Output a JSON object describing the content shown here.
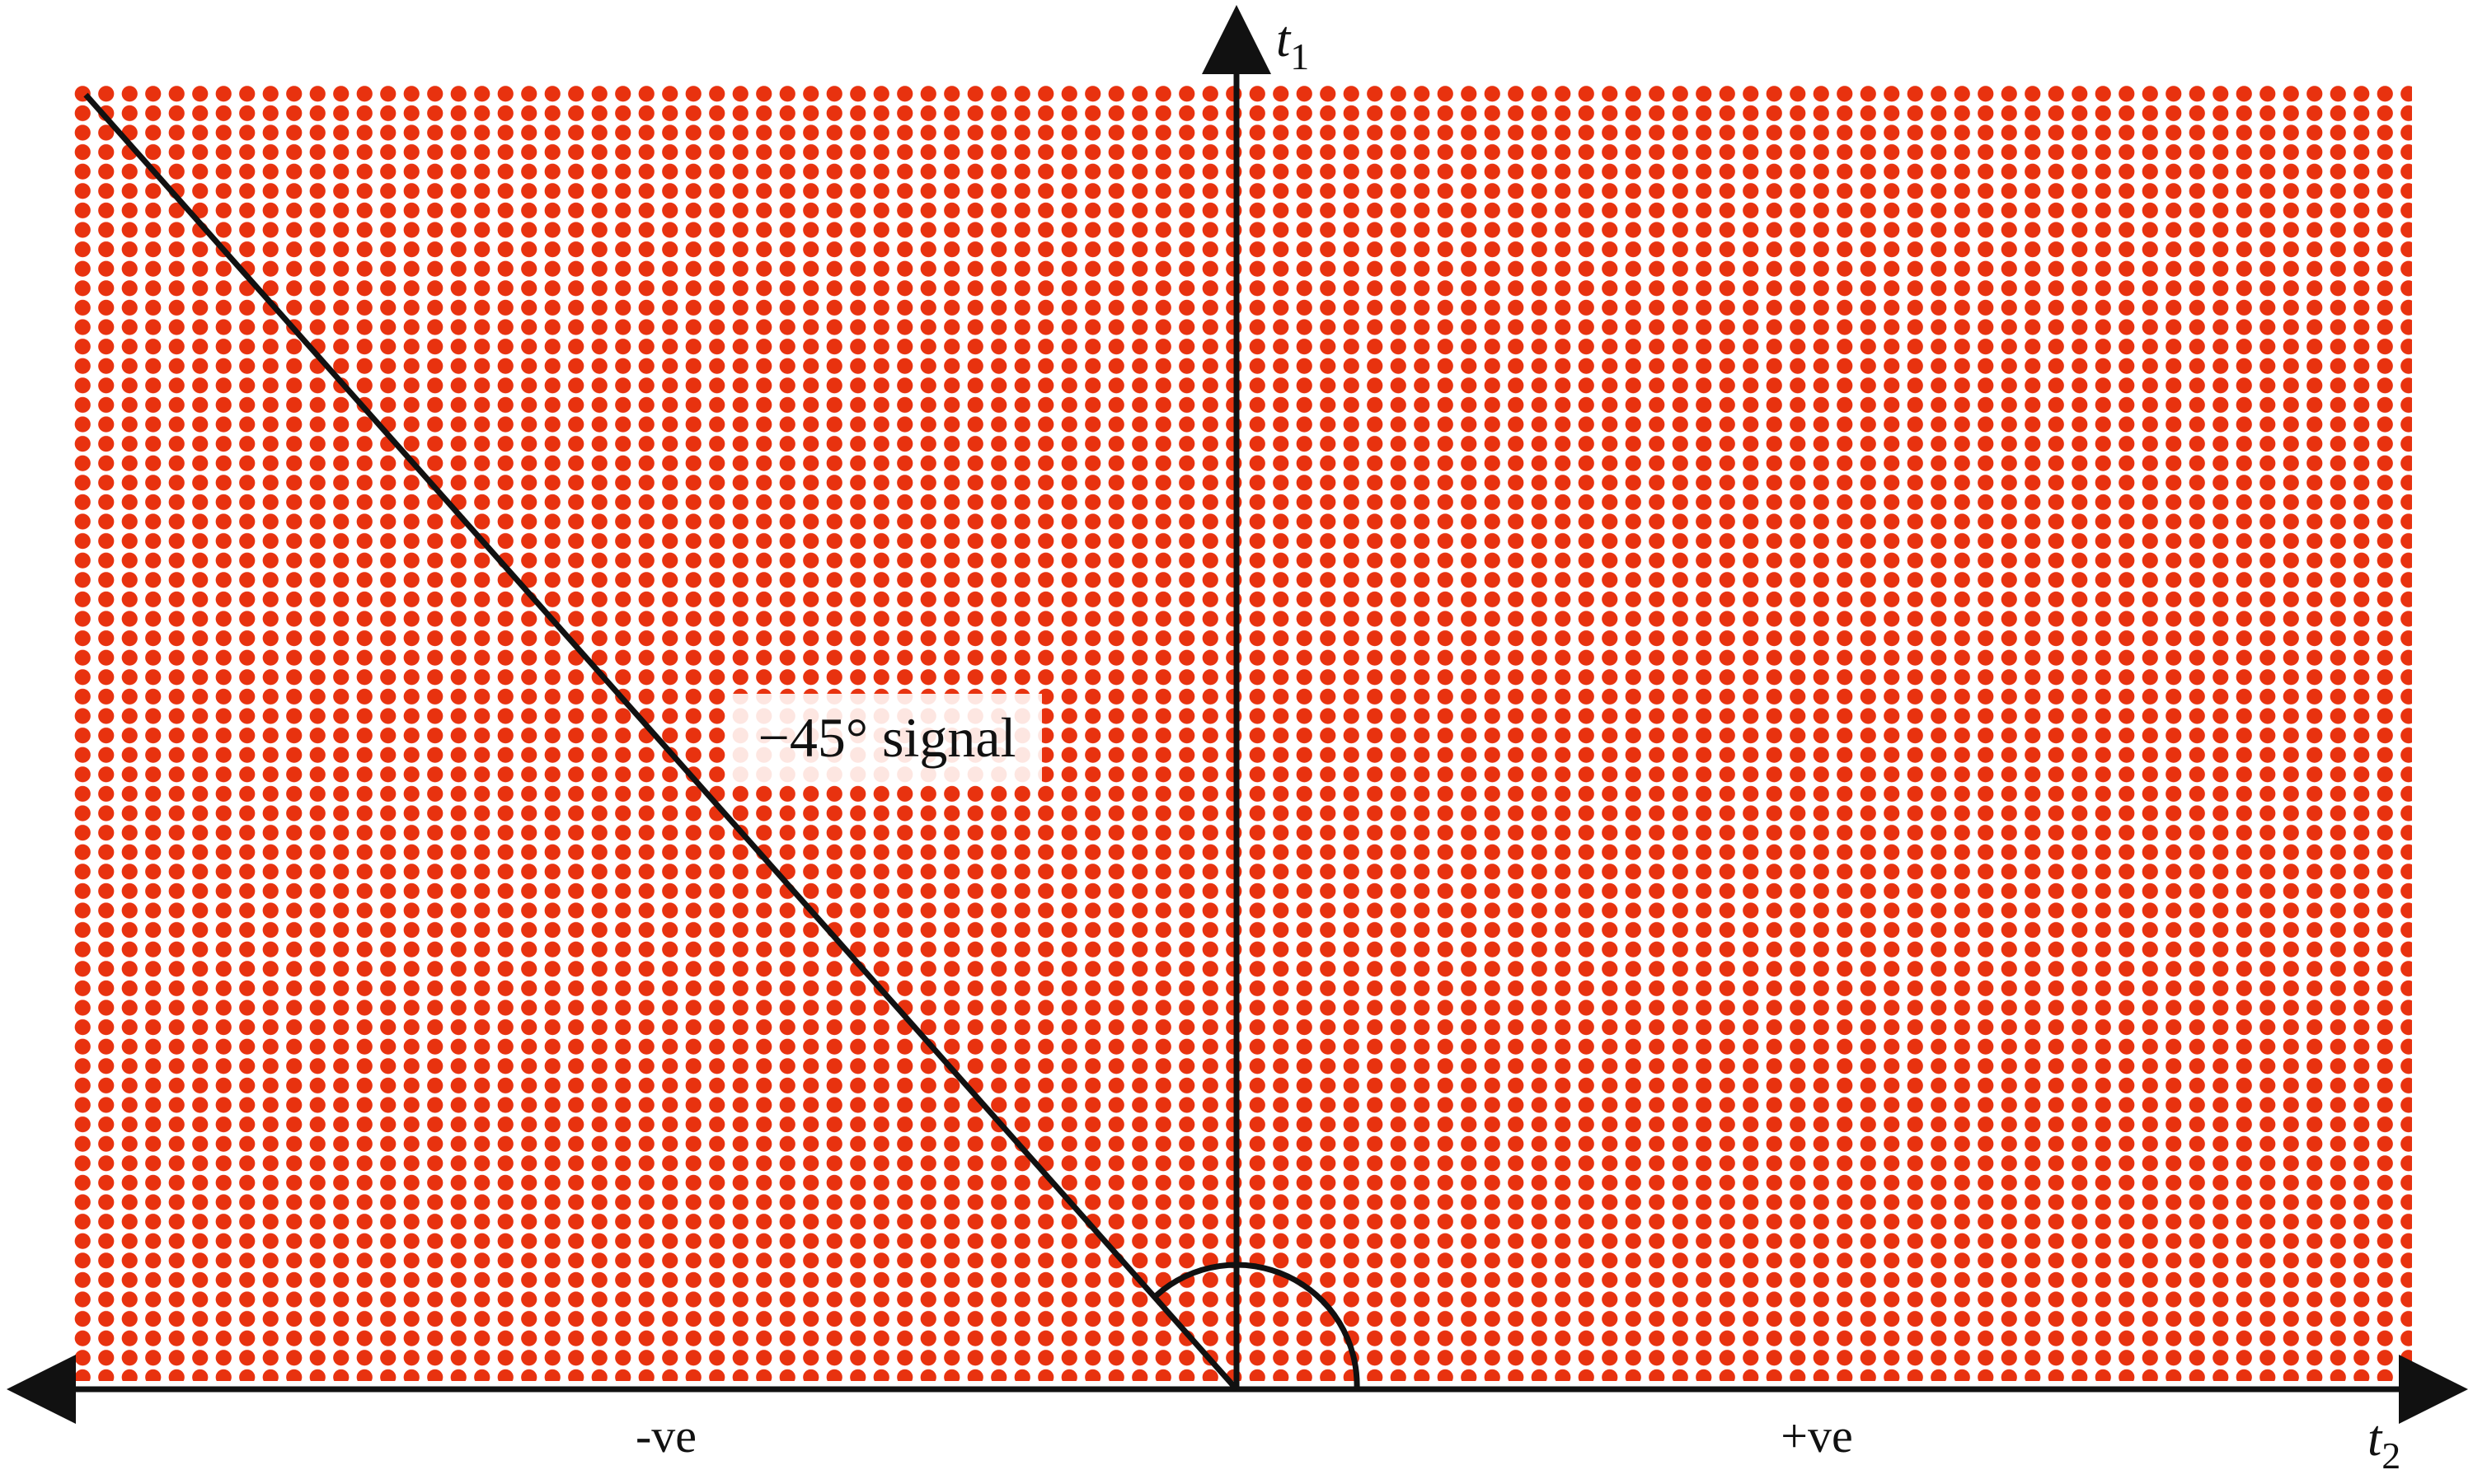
{
  "diagram": {
    "axis_vertical_label": "t",
    "axis_vertical_subscript": "1",
    "axis_horizontal_label": "t",
    "axis_horizontal_subscript": "2",
    "negative_side_label": "-ve",
    "positive_side_label": "+ve",
    "signal_label": "−45° signal",
    "signal_angle_degrees": -45,
    "colors": {
      "dots": "#e8320f",
      "axes": "#111111",
      "label_background": "#ffffff",
      "page_background": "#ffffff"
    }
  }
}
